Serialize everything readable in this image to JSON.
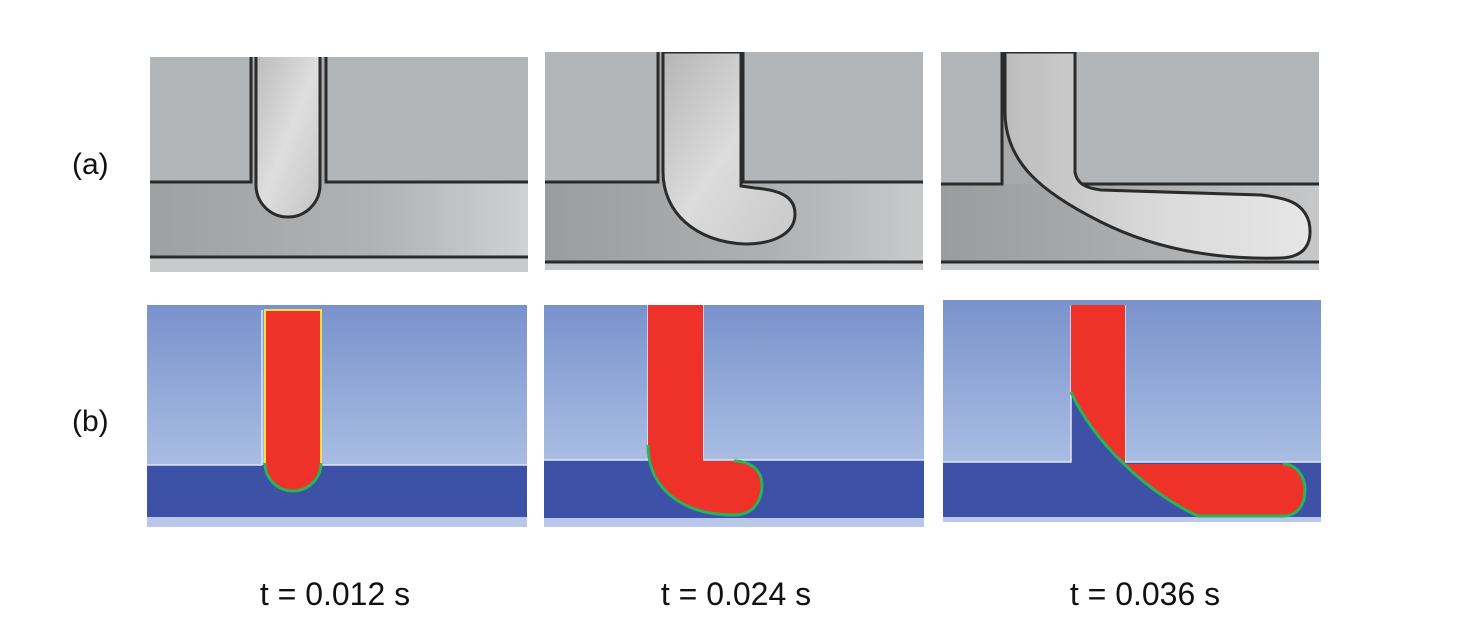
{
  "row_labels": {
    "a": "(a)",
    "b": "(b)"
  },
  "time_labels": [
    "t = 0.012 s",
    "t = 0.024 s",
    "t = 0.036 s"
  ],
  "colors": {
    "photo_wall": "#b3b6b8",
    "photo_channel": "#a7a9aa",
    "photo_droplet": "#cfcfcf",
    "photo_outline": "#2b2b2b",
    "sim_wall_top": "#7a92cc",
    "sim_wall_bottom": "#a9bde3",
    "sim_channel": "#3d52a6",
    "sim_droplet": "#ee3229",
    "sim_interface": "#27b45a",
    "sim_interface_edge": "#f0e24a"
  }
}
